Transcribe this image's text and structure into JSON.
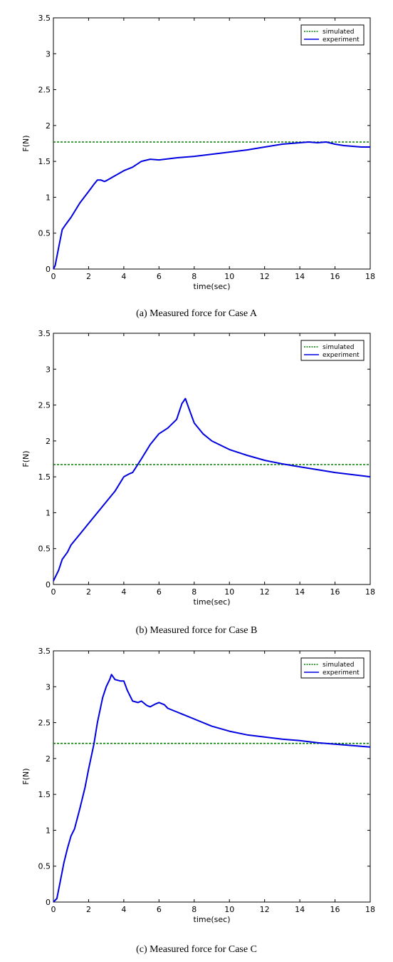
{
  "chart_data": [
    {
      "type": "line",
      "caption": "(a) Measured force for Case A",
      "xlabel": "time(sec)",
      "ylabel": "F(N)",
      "xlim": [
        0,
        18
      ],
      "ylim": [
        0,
        3.5
      ],
      "xticks": [
        "0",
        "2",
        "4",
        "6",
        "8",
        "10",
        "12",
        "14",
        "16",
        "18"
      ],
      "yticks": [
        "0",
        "0.5",
        "1",
        "1.5",
        "2",
        "2.5",
        "3",
        "3.5"
      ],
      "grid": false,
      "legend_position": "top-right",
      "series": [
        {
          "name": "simulated",
          "style": "dashed",
          "color": "#008000",
          "x": [
            0,
            18
          ],
          "y": [
            1.77,
            1.77
          ]
        },
        {
          "name": "experiment",
          "style": "solid",
          "color": "#0000e0",
          "x": [
            0,
            0.1,
            0.3,
            0.5,
            0.7,
            1.0,
            1.5,
            2.0,
            2.3,
            2.5,
            2.7,
            2.9,
            3.0,
            3.5,
            4.0,
            4.5,
            5.0,
            5.5,
            6.0,
            7.0,
            8.0,
            9.0,
            10.0,
            11.0,
            12.0,
            13.0,
            14.0,
            14.5,
            15.0,
            15.5,
            16.0,
            16.5,
            17.0,
            17.5,
            18.0
          ],
          "y": [
            0,
            0.05,
            0.3,
            0.55,
            0.62,
            0.72,
            0.92,
            1.08,
            1.18,
            1.24,
            1.24,
            1.22,
            1.23,
            1.3,
            1.37,
            1.42,
            1.5,
            1.53,
            1.52,
            1.55,
            1.57,
            1.6,
            1.63,
            1.66,
            1.7,
            1.74,
            1.76,
            1.77,
            1.76,
            1.77,
            1.74,
            1.72,
            1.71,
            1.7,
            1.7
          ]
        }
      ]
    },
    {
      "type": "line",
      "caption": "(b) Measured force for Case B",
      "xlabel": "time(sec)",
      "ylabel": "F(N)",
      "xlim": [
        0,
        18
      ],
      "ylim": [
        0,
        3.5
      ],
      "xticks": [
        "0",
        "2",
        "4",
        "6",
        "8",
        "10",
        "12",
        "14",
        "16",
        "18"
      ],
      "yticks": [
        "0",
        "0.5",
        "1",
        "1.5",
        "2",
        "2.5",
        "3",
        "3.5"
      ],
      "grid": false,
      "legend_position": "top-right",
      "series": [
        {
          "name": "simulated",
          "style": "dashed",
          "color": "#008000",
          "x": [
            0,
            18
          ],
          "y": [
            1.67,
            1.67
          ]
        },
        {
          "name": "experiment",
          "style": "solid",
          "color": "#0000e0",
          "x": [
            0,
            0.1,
            0.3,
            0.5,
            0.8,
            1.0,
            1.5,
            2.0,
            2.5,
            3.0,
            3.5,
            4.0,
            4.3,
            4.5,
            5.0,
            5.5,
            6.0,
            6.5,
            7.0,
            7.3,
            7.5,
            7.7,
            8.0,
            8.5,
            9.0,
            10.0,
            11.0,
            12.0,
            13.0,
            14.0,
            15.0,
            16.0,
            17.0,
            18.0
          ],
          "y": [
            0.05,
            0.1,
            0.2,
            0.35,
            0.45,
            0.55,
            0.7,
            0.85,
            1.0,
            1.15,
            1.3,
            1.5,
            1.54,
            1.56,
            1.75,
            1.95,
            2.1,
            2.18,
            2.3,
            2.52,
            2.59,
            2.45,
            2.25,
            2.1,
            2.0,
            1.88,
            1.8,
            1.73,
            1.68,
            1.64,
            1.6,
            1.56,
            1.53,
            1.5
          ]
        }
      ]
    },
    {
      "type": "line",
      "caption": "(c) Measured force for Case C",
      "xlabel": "time(sec)",
      "ylabel": "F(N)",
      "xlim": [
        0,
        18
      ],
      "ylim": [
        0,
        3.5
      ],
      "xticks": [
        "0",
        "2",
        "4",
        "6",
        "8",
        "10",
        "12",
        "14",
        "16",
        "18"
      ],
      "yticks": [
        "0",
        "0.5",
        "1",
        "1.5",
        "2",
        "2.5",
        "3",
        "3.5"
      ],
      "grid": false,
      "legend_position": "top-right",
      "series": [
        {
          "name": "simulated",
          "style": "dashed",
          "color": "#008000",
          "x": [
            0,
            18
          ],
          "y": [
            2.21,
            2.21
          ]
        },
        {
          "name": "experiment",
          "style": "solid",
          "color": "#0000e0",
          "x": [
            0,
            0.2,
            0.4,
            0.6,
            0.8,
            1.0,
            1.2,
            1.5,
            1.8,
            2.0,
            2.3,
            2.5,
            2.8,
            3.0,
            3.2,
            3.3,
            3.5,
            3.8,
            4.0,
            4.2,
            4.5,
            4.8,
            5.0,
            5.3,
            5.5,
            5.8,
            6.0,
            6.3,
            6.5,
            7.0,
            8.0,
            9.0,
            10.0,
            11.0,
            12.0,
            13.0,
            14.0,
            15.0,
            16.0,
            17.0,
            18.0
          ],
          "y": [
            0,
            0.05,
            0.3,
            0.55,
            0.75,
            0.92,
            1.02,
            1.3,
            1.6,
            1.85,
            2.2,
            2.5,
            2.85,
            3.0,
            3.1,
            3.17,
            3.1,
            3.08,
            3.08,
            2.95,
            2.8,
            2.78,
            2.8,
            2.74,
            2.72,
            2.76,
            2.78,
            2.75,
            2.7,
            2.65,
            2.55,
            2.45,
            2.38,
            2.33,
            2.3,
            2.27,
            2.25,
            2.22,
            2.2,
            2.18,
            2.16
          ]
        }
      ]
    }
  ]
}
